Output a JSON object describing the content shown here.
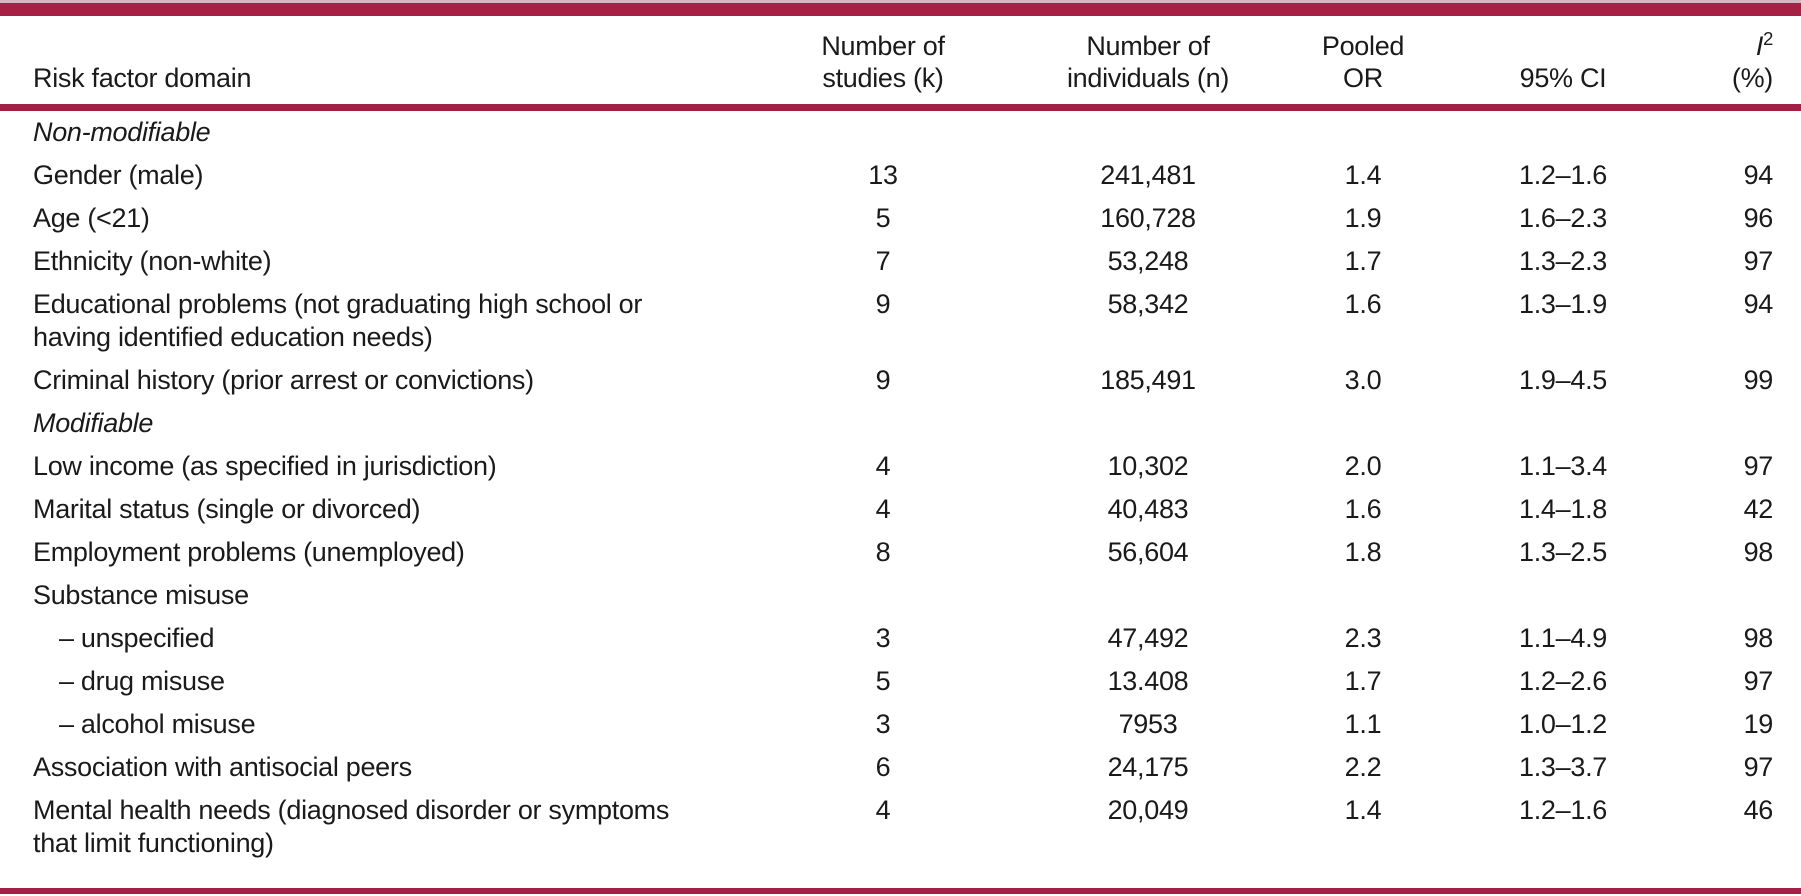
{
  "colors": {
    "accent": "#a62045",
    "accent_light": "#d9b3c1",
    "text": "#1a1a1a",
    "background": "#ffffff"
  },
  "table": {
    "row_header_label": "Risk factor domain",
    "columns": [
      {
        "id": "studies",
        "line1": "Number of",
        "line2": "studies (k)"
      },
      {
        "id": "individuals",
        "line1": "Number of",
        "line2": "individuals (n)"
      },
      {
        "id": "or",
        "line1": "Pooled",
        "line2": "OR"
      },
      {
        "id": "ci",
        "line1": "",
        "line2": "95% CI"
      },
      {
        "id": "i2",
        "line1_base": "I",
        "line1_sup": "2",
        "line2": "(%)"
      }
    ],
    "rows": [
      {
        "label": "Non-modifiable",
        "style": "section"
      },
      {
        "label": "Gender (male)",
        "studies": "13",
        "individuals": "241,481",
        "or": "1.4",
        "ci": "1.2–1.6",
        "i2": "94"
      },
      {
        "label": "Age (<21)",
        "studies": "5",
        "individuals": "160,728",
        "or": "1.9",
        "ci": "1.6–2.3",
        "i2": "96"
      },
      {
        "label": "Ethnicity (non-white)",
        "studies": "7",
        "individuals": "53,248",
        "or": "1.7",
        "ci": "1.3–2.3",
        "i2": "97"
      },
      {
        "label": "Educational problems (not graduating high school or",
        "label2": "having identified education needs)",
        "studies": "9",
        "individuals": "58,342",
        "or": "1.6",
        "ci": "1.3–1.9",
        "i2": "94"
      },
      {
        "label": "Criminal history (prior arrest or convictions)",
        "studies": "9",
        "individuals": "185,491",
        "or": "3.0",
        "ci": "1.9–4.5",
        "i2": "99"
      },
      {
        "label": "Modifiable",
        "style": "section"
      },
      {
        "label": "Low income (as specified in jurisdiction)",
        "studies": "4",
        "individuals": "10,302",
        "or": "2.0",
        "ci": "1.1–3.4",
        "i2": "97"
      },
      {
        "label": "Marital status (single or divorced)",
        "studies": "4",
        "individuals": "40,483",
        "or": "1.6",
        "ci": "1.4–1.8",
        "i2": "42"
      },
      {
        "label": "Employment problems (unemployed)",
        "studies": "8",
        "individuals": "56,604",
        "or": "1.8",
        "ci": "1.3–2.5",
        "i2": "98"
      },
      {
        "label": "Substance misuse",
        "style": "group"
      },
      {
        "label": "– unspecified",
        "style": "sub",
        "studies": "3",
        "individuals": "47,492",
        "or": "2.3",
        "ci": "1.1–4.9",
        "i2": "98"
      },
      {
        "label": "– drug misuse",
        "style": "sub",
        "studies": "5",
        "individuals": "13.408",
        "or": "1.7",
        "ci": "1.2–2.6",
        "i2": "97"
      },
      {
        "label": "– alcohol misuse",
        "style": "sub",
        "studies": "3",
        "individuals": "7953",
        "or": "1.1",
        "ci": "1.0–1.2",
        "i2": "19"
      },
      {
        "label": "Association with antisocial peers",
        "studies": "6",
        "individuals": "24,175",
        "or": "2.2",
        "ci": "1.3–3.7",
        "i2": "97"
      },
      {
        "label": "Mental health needs (diagnosed disorder or symptoms",
        "label2": "that limit functioning)",
        "studies": "4",
        "individuals": "20,049",
        "or": "1.4",
        "ci": "1.2–1.6",
        "i2": "46"
      }
    ]
  }
}
